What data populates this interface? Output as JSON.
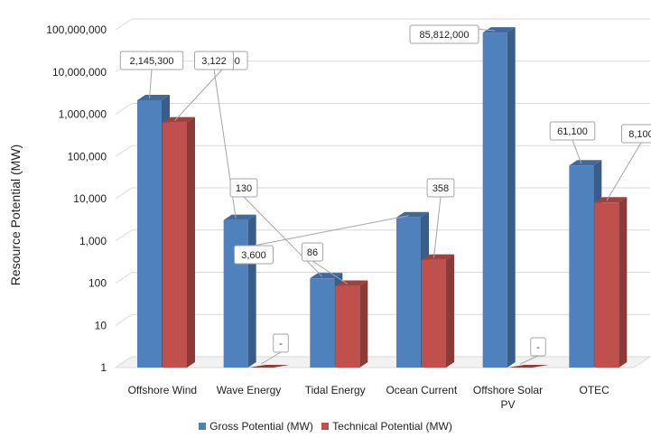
{
  "chart_data": {
    "type": "bar",
    "title": "",
    "xlabel": "",
    "ylabel": "Resource Potential (MW)",
    "yscale": "log",
    "ylim": [
      1,
      100000000
    ],
    "yticks": [
      "1",
      "10",
      "100",
      "1,000",
      "10,000",
      "100,000",
      "1,000,000",
      "10,000,000",
      "100,000,000"
    ],
    "categories": [
      [
        "Offshore Wind"
      ],
      [
        "Wave Energy"
      ],
      [
        "Tidal Energy"
      ],
      [
        "Ocean Current"
      ],
      [
        "Offshore Solar",
        "PV"
      ],
      [
        "OTEC"
      ]
    ],
    "series": [
      {
        "name": "Gross Potential (MW)",
        "color": "#4F81BD",
        "values": [
          2145300,
          3122,
          130,
          3600,
          85812000,
          61100
        ],
        "labels": [
          "2,145,300",
          "3,122",
          "130",
          "3,600",
          "85,812,000",
          "61,100"
        ]
      },
      {
        "name": "Technical Potential (MW)",
        "color": "#C0504D",
        "values": [
          637800,
          null,
          86,
          358,
          null,
          8100
        ],
        "labels": [
          "637,800",
          "-",
          "86",
          "358",
          "-",
          "8,100"
        ]
      }
    ],
    "grid": true,
    "legend_position": "bottom"
  }
}
